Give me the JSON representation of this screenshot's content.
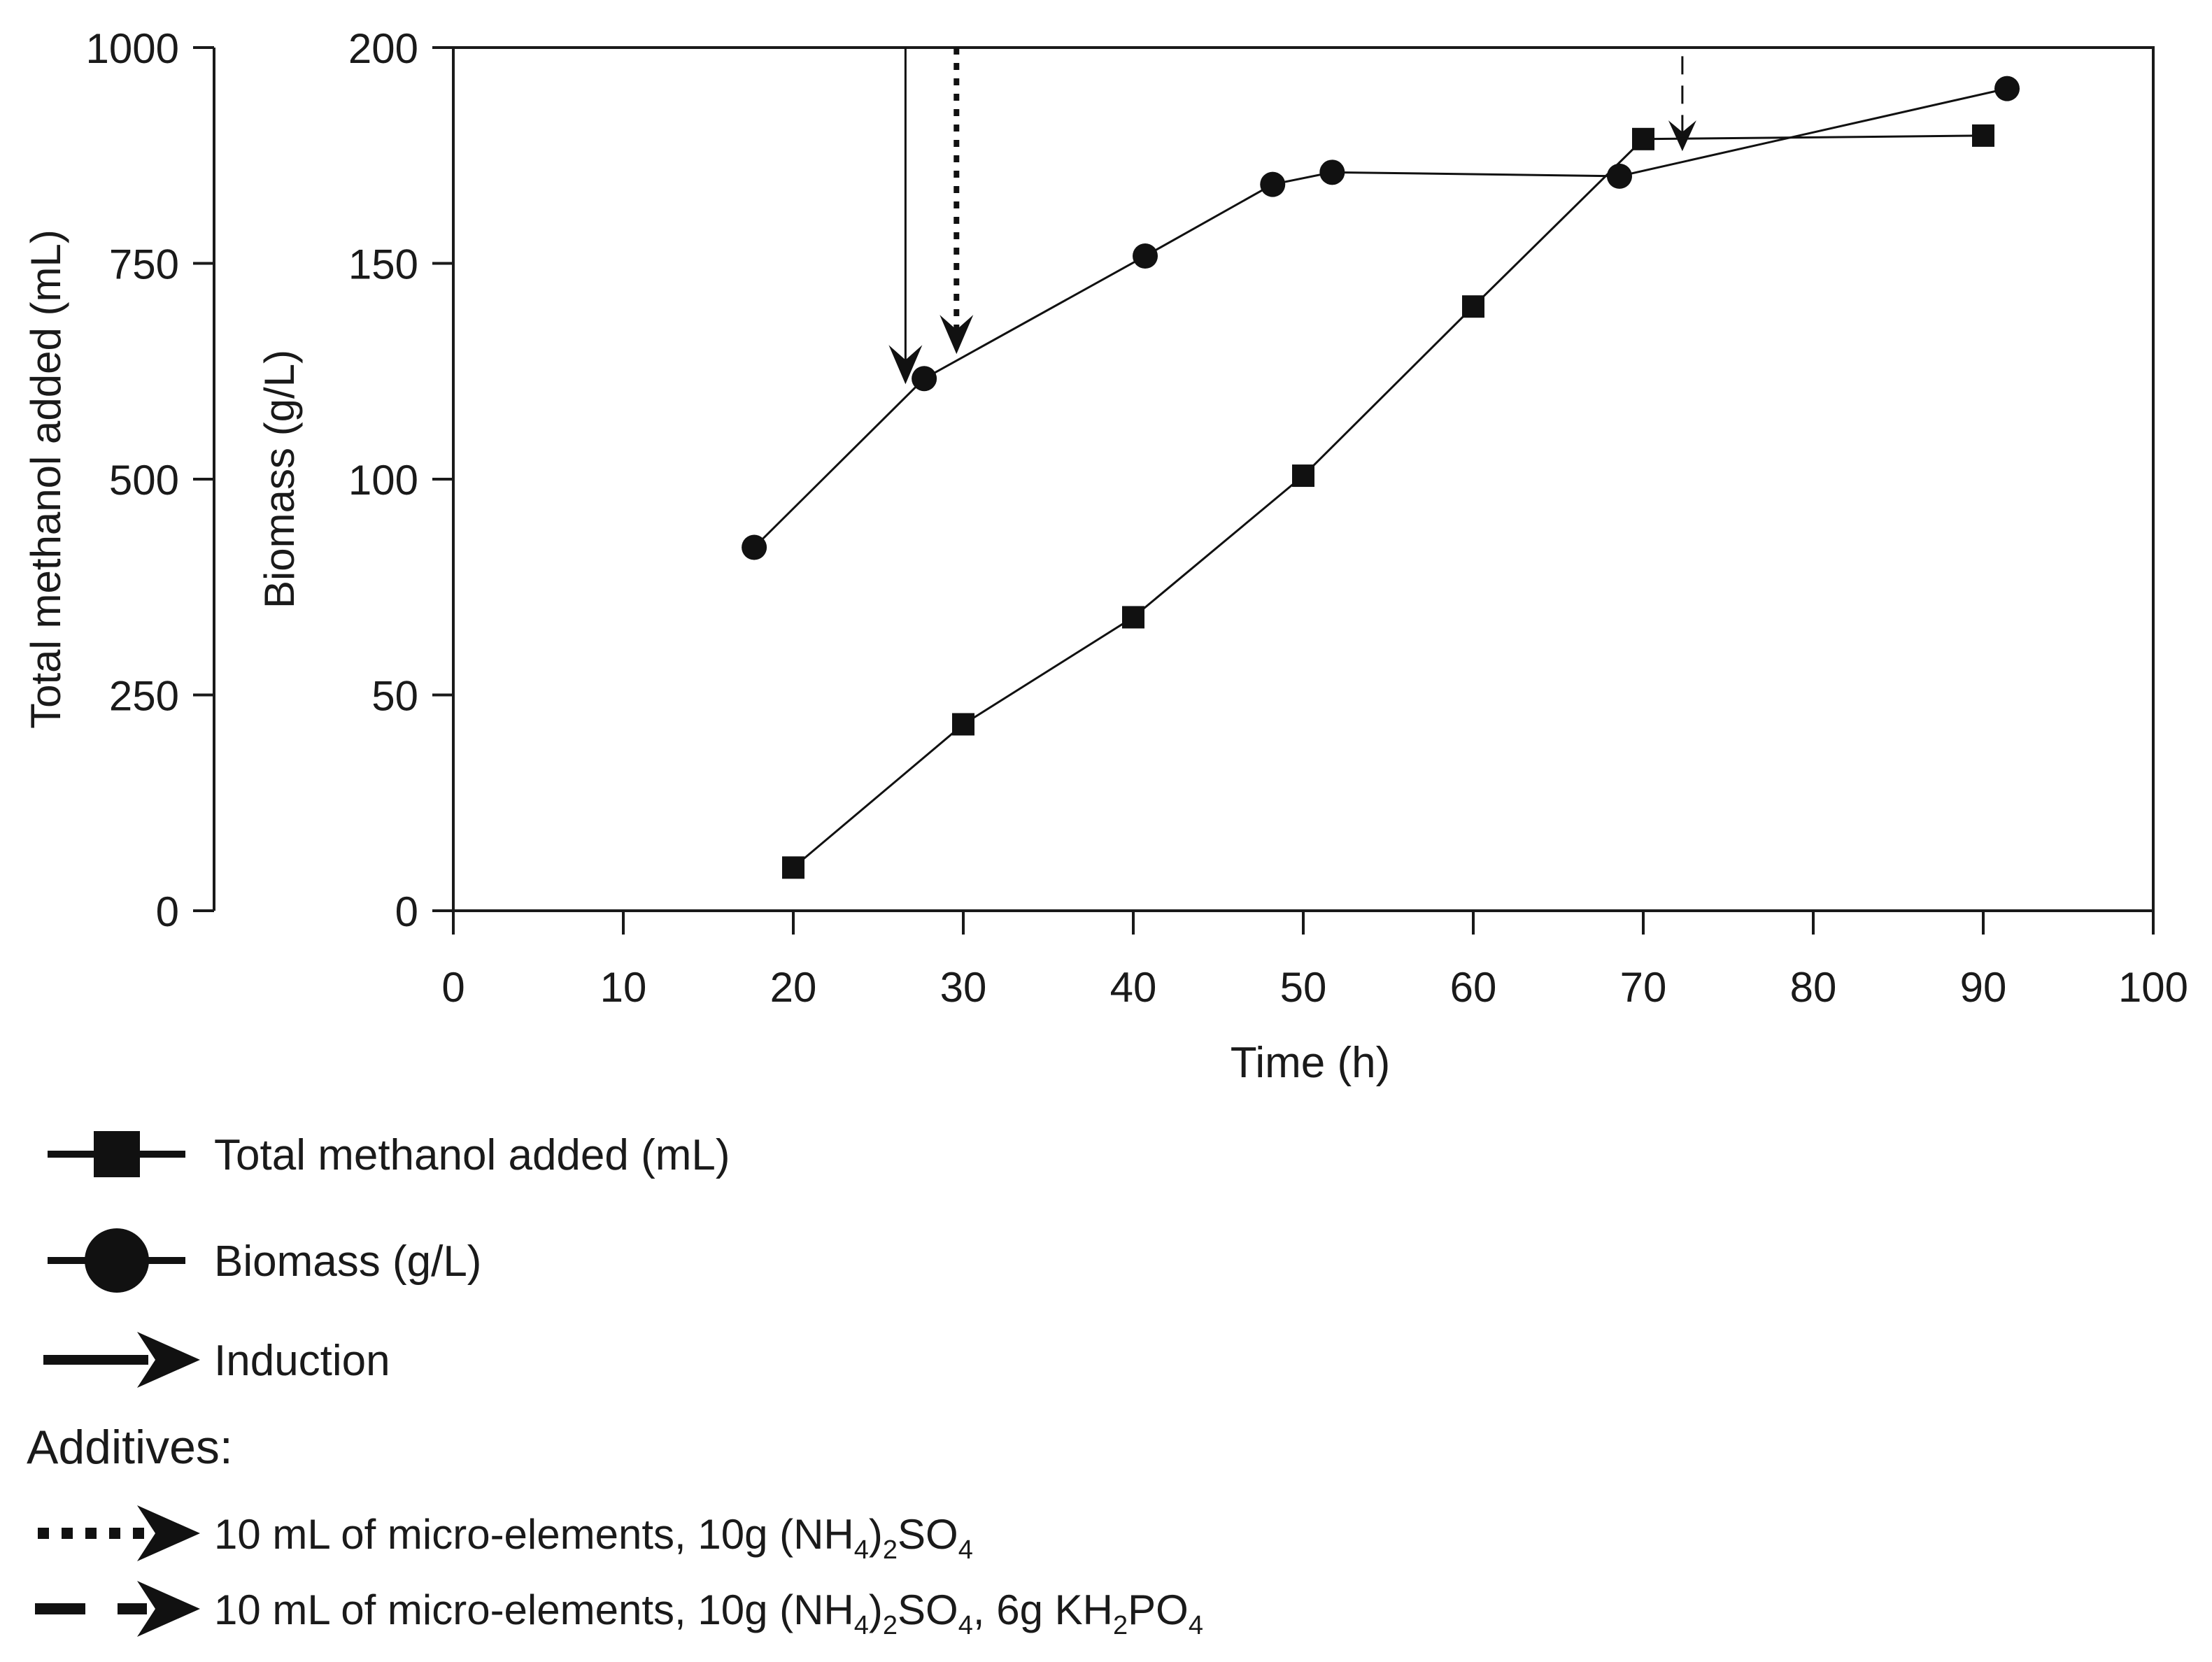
{
  "chart_data": {
    "type": "line",
    "xlabel": "Time (h)",
    "ylabel": "Biomass (g/L)",
    "y2label": "Total methanol added (mL)",
    "xlim": [
      0,
      100
    ],
    "ylim": [
      0,
      200
    ],
    "y2lim": [
      0,
      1000
    ],
    "xticks": [
      0,
      10,
      20,
      30,
      40,
      50,
      60,
      70,
      80,
      90,
      100
    ],
    "yticks": [
      0,
      50,
      100,
      150,
      200
    ],
    "y2ticks": [
      0,
      250,
      500,
      750,
      1000
    ],
    "grid": false,
    "legend_position": "bottom",
    "series": [
      {
        "name": "Total methanol added (mL)",
        "axis": "left-outer",
        "marker": "square",
        "x": [
          20,
          30,
          40,
          50,
          60,
          70,
          90
        ],
        "y": [
          50,
          216,
          340,
          504,
          700,
          894,
          898
        ]
      },
      {
        "name": "Biomass (g/L)",
        "axis": "left-inner",
        "marker": "circle",
        "x": [
          17.7,
          27.7,
          40.7,
          48.2,
          51.7,
          68.6,
          91.4
        ],
        "y": [
          84.2,
          123.3,
          151.7,
          168.3,
          171.1,
          170.2,
          190.5
        ]
      }
    ],
    "annotations": [
      {
        "type": "induction",
        "style": "solid",
        "x_from": 26.6,
        "y_from": 200,
        "x_to": 26.6,
        "y_to": 122
      },
      {
        "type": "additive-1",
        "style": "dotted",
        "x_from": 29.6,
        "y_from": 200,
        "x_to": 29.6,
        "y_to": 129
      },
      {
        "type": "additive-2",
        "style": "dashed",
        "x_from": 72.3,
        "y_from": 198,
        "x_to": 72.3,
        "y_to": 176
      }
    ],
    "legend": {
      "methanol": "Total methanol added (mL)",
      "biomass": "Biomass (g/L)",
      "induction": "Induction",
      "additives_heading": "Additives:",
      "additive1_a": "10 mL of micro-elements, 10g (NH",
      "additive1_sub1": "4",
      "additive1_b": ")",
      "additive1_sub2": "2",
      "additive1_c": "SO",
      "additive1_sub3": "4",
      "additive2_a": "10 mL of micro-elements, 10g (NH",
      "additive2_sub1": "4",
      "additive2_b": ")",
      "additive2_sub2": "2",
      "additive2_c": "SO",
      "additive2_sub3": "4",
      "additive2_d": ", 6g KH",
      "additive2_sub4": "2",
      "additive2_e": "PO",
      "additive2_sub5": "4"
    }
  }
}
